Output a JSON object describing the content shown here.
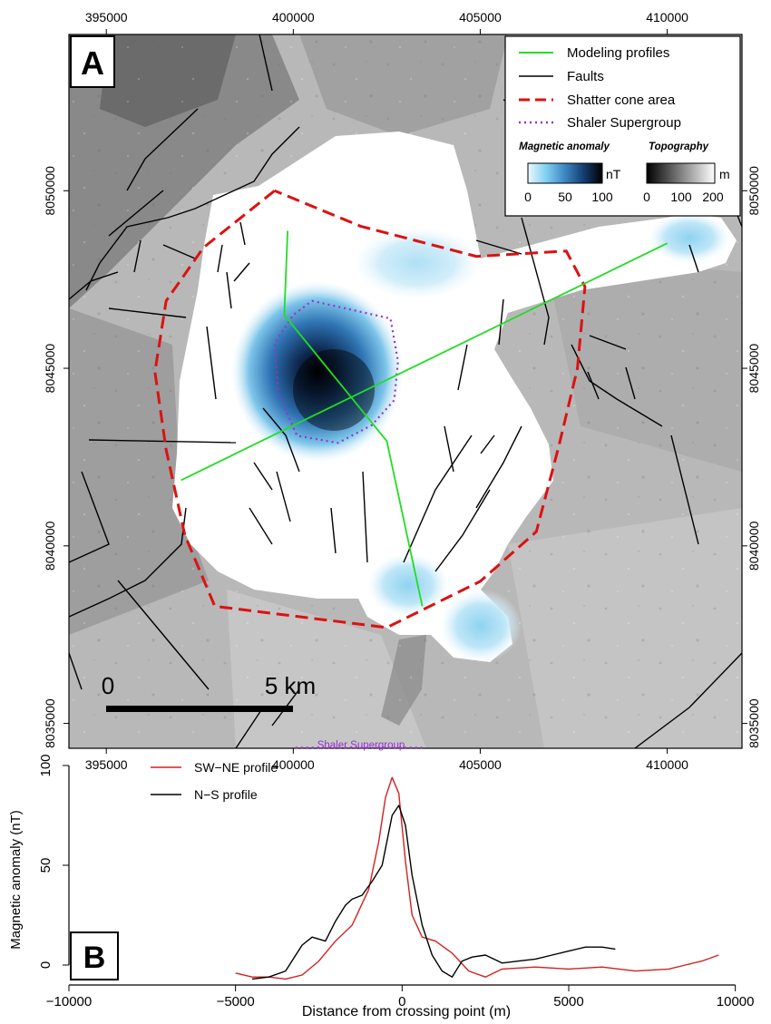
{
  "chart_data": [
    {
      "type": "map",
      "panel_label": "A",
      "x_ticks": [
        395000,
        400000,
        405000,
        410000
      ],
      "y_ticks": [
        8035000,
        8040000,
        8045000,
        8050000
      ],
      "xlim": [
        394000,
        412000
      ],
      "ylim": [
        8034300,
        8054400
      ],
      "legend": {
        "placement": "top-right",
        "items": [
          {
            "label": "Modeling profiles",
            "color": "#22dd22",
            "style": "solid"
          },
          {
            "label": "Faults",
            "color": "#000000",
            "style": "solid"
          },
          {
            "label": "Shatter cone area",
            "color": "#dd1111",
            "style": "dashed"
          },
          {
            "label": "Shaler Supergroup",
            "color": "#9933cc",
            "style": "dotted"
          }
        ],
        "colorbars": [
          {
            "title": "Magnetic anomaly",
            "unit": "nT",
            "ticks": [
              "0",
              "50",
              "100"
            ],
            "colors": [
              "#e8f8ff",
              "#7fcff0",
              "#3b86c2",
              "#143d70",
              "#000000"
            ]
          },
          {
            "title": "Topography",
            "unit": "m",
            "ticks": [
              "0",
              "100",
              "200"
            ],
            "colors": [
              "#000000",
              "#808080",
              "#ffffff"
            ]
          }
        ]
      },
      "scale_bar": {
        "labels": [
          "0",
          "5 km"
        ],
        "length_m": 5000
      },
      "modeling_profiles": [
        {
          "name": "SW-NE",
          "x": [
            397000,
            410000
          ],
          "y": [
            8041850,
            8048520
          ]
        },
        {
          "name": "N-S",
          "x": [
            399850,
            399760,
            402500,
            403450
          ],
          "y": [
            8048870,
            8046500,
            8042950,
            8038300
          ]
        }
      ],
      "shatter_cone_area": {
        "x": [
          399500,
          397600,
          396600,
          396300,
          396600,
          397100,
          397900,
          402500,
          405000,
          406500,
          407100,
          407600,
          407800,
          407300,
          404900,
          401800,
          399500
        ],
        "y": [
          8050000,
          8048400,
          8046900,
          8044900,
          8042700,
          8040300,
          8038300,
          8037700,
          8039000,
          8040400,
          8042800,
          8045000,
          8047300,
          8048300,
          8048150,
          8049000,
          8050000
        ]
      },
      "shaler_supergroup": {
        "x": [
          400500,
          402600,
          402800,
          402700,
          402100,
          401200,
          400100,
          399600,
          399500,
          400000,
          400500
        ],
        "y": [
          8046900,
          8046400,
          8045200,
          8044100,
          8043400,
          8042900,
          8043100,
          8044300,
          8045700,
          8046500,
          8046900
        ]
      },
      "magnetic_anomaly_max": {
        "x": 401300,
        "y": 8044400,
        "value_nT": 100
      }
    },
    {
      "type": "line",
      "panel_label": "B",
      "xlabel": "Distance from crossing point (m)",
      "ylabel": "Magnetic anomaly (nT)",
      "xlim": [
        -10000,
        10200
      ],
      "ylim": [
        -10,
        120
      ],
      "x_ticks": [
        -10000,
        -5000,
        0,
        5000,
        10000
      ],
      "y_ticks": [
        0,
        50,
        100
      ],
      "annotation": {
        "text": "Shaler Supergroup",
        "x_start": -3200,
        "x_end": 600,
        "y": 109
      },
      "series": [
        {
          "name": "SW−NE profile",
          "color": "#d42020",
          "x": [
            -5000,
            -4500,
            -4000,
            -3500,
            -3000,
            -2500,
            -2000,
            -1500,
            -1000,
            -700,
            -500,
            -300,
            -100,
            100,
            300,
            600,
            1000,
            1500,
            2000,
            2500,
            3000,
            4000,
            5000,
            6000,
            7000,
            8000,
            8500,
            9000,
            9500
          ],
          "y": [
            -4,
            -6,
            -6,
            -7,
            -5,
            2,
            12,
            20,
            38,
            62,
            84,
            94,
            86,
            52,
            25,
            14,
            12,
            6,
            -3,
            -6,
            -2,
            -1,
            -2,
            -1,
            -3,
            -2,
            0,
            2,
            5
          ]
        },
        {
          "name": "N−S profile",
          "color": "#000000",
          "x": [
            -4500,
            -4000,
            -3500,
            -3000,
            -2700,
            -2300,
            -2000,
            -1700,
            -1500,
            -1200,
            -900,
            -600,
            -300,
            -100,
            100,
            300,
            600,
            900,
            1200,
            1500,
            1800,
            2100,
            2500,
            3000,
            3500,
            4000,
            4500,
            5000,
            5500,
            6000,
            6400
          ],
          "y": [
            -7,
            -6,
            -3,
            10,
            14,
            12,
            22,
            30,
            33,
            35,
            42,
            50,
            75,
            80,
            70,
            45,
            20,
            5,
            -3,
            -6,
            2,
            4,
            5,
            1,
            2,
            3,
            5,
            7,
            9,
            9,
            8
          ]
        }
      ]
    }
  ]
}
